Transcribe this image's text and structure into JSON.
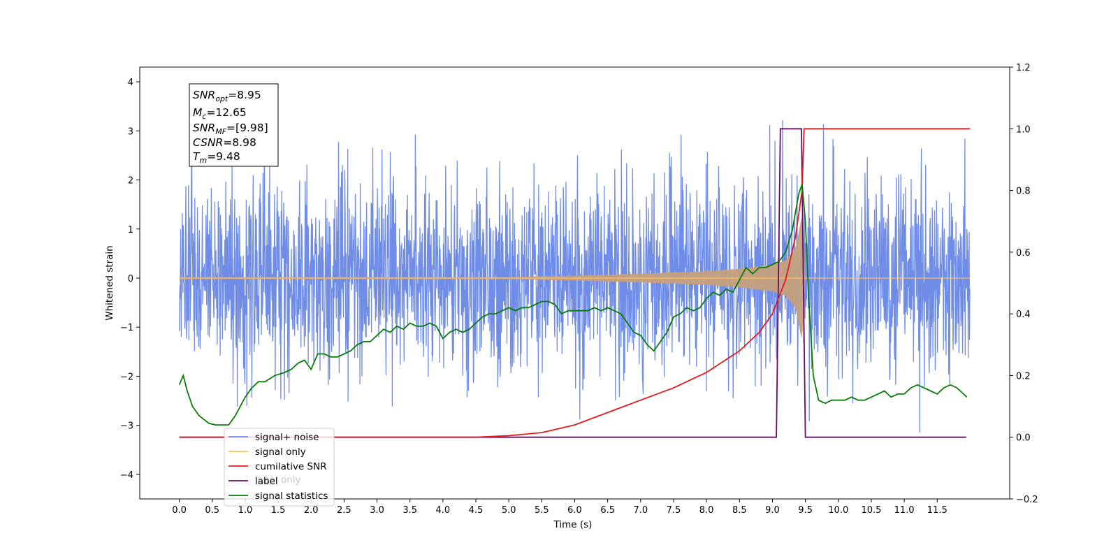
{
  "chart_data": {
    "type": "line",
    "xlabel": "Time (s)",
    "ylabel": "Whitened strain",
    "xlim": [
      -0.6,
      12.6
    ],
    "ylim_left": [
      -4.5,
      4.3
    ],
    "ylim_right": [
      -0.2,
      1.2
    ],
    "grid": false,
    "x_ticks": [
      "0.0",
      "0.5",
      "1.0",
      "1.5",
      "2.0",
      "2.5",
      "3.0",
      "3.5",
      "4.0",
      "4.5",
      "5.0",
      "5.5",
      "6.0",
      "6.5",
      "7.0",
      "7.5",
      "8.0",
      "8.5",
      "9.0",
      "9.5",
      "10.0",
      "10.5",
      "11.0",
      "11.5"
    ],
    "y_ticks_left": [
      "4",
      "3",
      "2",
      "1",
      "0",
      "−1",
      "−2",
      "−3",
      "−4"
    ],
    "y_ticks_right": [
      "1.2",
      "1.0",
      "0.8",
      "0.6",
      "0.4",
      "0.2",
      "0.0",
      "−0.2"
    ],
    "legend_position": "lower-left",
    "legend": [
      {
        "label": "signal+ noise",
        "color": "#6f8ce6"
      },
      {
        "label": "signal only",
        "color": "#ffbf5a"
      },
      {
        "label": "cumilative SNR",
        "color": "#e31a1c"
      },
      {
        "label": "label",
        "color": "#6a0a6a"
      },
      {
        "label": "signal statistics",
        "color": "#0a7a0a"
      }
    ],
    "overlap_text": "label only",
    "annotation": {
      "snr_opt_label": "SNR",
      "snr_opt_sub": "opt",
      "snr_opt_value": "=8.95",
      "mc_label": "M",
      "mc_sub": "c",
      "mc_value": "=12.65",
      "snr_mf_label": "SNR",
      "snr_mf_sub": "MF",
      "snr_mf_value": "=[9.98]",
      "csnr_label": "CSNR",
      "csnr_value": "=8.98",
      "tm_label": "T",
      "tm_sub": "m",
      "tm_value": "=9.48"
    },
    "series": [
      {
        "name": "signal+ noise",
        "axis": "left",
        "x_range": [
          0.0,
          12.0
        ],
        "color": "#6f8ce6"
      },
      {
        "name": "signal only",
        "axis": "left",
        "x_range": [
          0.0,
          12.0
        ],
        "envelope_x": [
          0.0,
          5.0,
          6.0,
          7.0,
          8.0,
          8.5,
          9.0,
          9.2,
          9.35,
          9.45,
          9.5,
          12.0
        ],
        "envelope_amp": [
          0.02,
          0.02,
          0.05,
          0.09,
          0.14,
          0.19,
          0.27,
          0.36,
          0.6,
          1.3,
          0.0,
          0.0
        ],
        "color": "#ffbf5a"
      },
      {
        "name": "cumilative SNR",
        "axis": "right",
        "x": [
          0.0,
          4.5,
          5.0,
          5.5,
          6.0,
          6.5,
          7.0,
          7.5,
          8.0,
          8.5,
          8.8,
          9.0,
          9.2,
          9.35,
          9.45,
          9.48,
          12.0
        ],
        "y": [
          0.0,
          0.0,
          0.005,
          0.015,
          0.04,
          0.08,
          0.12,
          0.16,
          0.21,
          0.28,
          0.34,
          0.4,
          0.51,
          0.65,
          0.8,
          1.0,
          1.0
        ],
        "color": "#e31a1c"
      },
      {
        "name": "label",
        "axis": "right",
        "x": [
          0.0,
          9.06,
          9.12,
          9.44,
          9.5,
          11.94
        ],
        "y": [
          0.0,
          0.0,
          1.0,
          1.0,
          0.0,
          0.0
        ],
        "color": "#6a0a6a"
      },
      {
        "name": "signal statistics",
        "axis": "right",
        "x": [
          0.0,
          0.06,
          0.12,
          0.2,
          0.3,
          0.45,
          0.55,
          0.75,
          0.85,
          1.0,
          1.1,
          1.2,
          1.3,
          1.45,
          1.6,
          1.7,
          1.8,
          1.9,
          2.0,
          2.1,
          2.2,
          2.3,
          2.4,
          2.5,
          2.6,
          2.7,
          2.8,
          2.9,
          3.0,
          3.1,
          3.2,
          3.3,
          3.4,
          3.5,
          3.6,
          3.7,
          3.8,
          3.9,
          4.0,
          4.1,
          4.2,
          4.3,
          4.4,
          4.5,
          4.6,
          4.7,
          4.8,
          4.9,
          5.0,
          5.1,
          5.2,
          5.3,
          5.4,
          5.5,
          5.6,
          5.7,
          5.8,
          5.9,
          6.0,
          6.1,
          6.2,
          6.3,
          6.4,
          6.5,
          6.6,
          6.7,
          6.8,
          6.9,
          7.0,
          7.1,
          7.2,
          7.3,
          7.4,
          7.5,
          7.6,
          7.7,
          7.8,
          7.9,
          8.0,
          8.1,
          8.2,
          8.3,
          8.4,
          8.5,
          8.6,
          8.7,
          8.8,
          8.9,
          9.0,
          9.1,
          9.2,
          9.3,
          9.4,
          9.45,
          9.5,
          9.55,
          9.62,
          9.7,
          9.8,
          9.9,
          10.0,
          10.1,
          10.2,
          10.3,
          10.4,
          10.5,
          10.6,
          10.7,
          10.8,
          10.9,
          11.0,
          11.1,
          11.2,
          11.3,
          11.4,
          11.5,
          11.6,
          11.7,
          11.8,
          11.9,
          11.95
        ],
        "y": [
          0.17,
          0.2,
          0.15,
          0.1,
          0.07,
          0.045,
          0.04,
          0.04,
          0.07,
          0.13,
          0.16,
          0.18,
          0.18,
          0.2,
          0.21,
          0.22,
          0.24,
          0.25,
          0.22,
          0.27,
          0.27,
          0.26,
          0.26,
          0.27,
          0.28,
          0.3,
          0.31,
          0.31,
          0.33,
          0.35,
          0.34,
          0.36,
          0.35,
          0.37,
          0.36,
          0.36,
          0.37,
          0.36,
          0.32,
          0.34,
          0.35,
          0.34,
          0.35,
          0.37,
          0.39,
          0.4,
          0.4,
          0.41,
          0.42,
          0.41,
          0.42,
          0.42,
          0.43,
          0.44,
          0.44,
          0.43,
          0.4,
          0.41,
          0.41,
          0.41,
          0.41,
          0.42,
          0.41,
          0.42,
          0.41,
          0.4,
          0.37,
          0.34,
          0.33,
          0.3,
          0.28,
          0.31,
          0.34,
          0.39,
          0.4,
          0.42,
          0.41,
          0.42,
          0.45,
          0.47,
          0.46,
          0.48,
          0.47,
          0.51,
          0.55,
          0.53,
          0.55,
          0.55,
          0.56,
          0.57,
          0.6,
          0.67,
          0.79,
          0.82,
          0.7,
          0.45,
          0.2,
          0.12,
          0.11,
          0.12,
          0.12,
          0.12,
          0.13,
          0.12,
          0.12,
          0.13,
          0.14,
          0.15,
          0.13,
          0.14,
          0.14,
          0.16,
          0.17,
          0.16,
          0.15,
          0.14,
          0.16,
          0.17,
          0.16,
          0.14,
          0.13
        ],
        "color": "#0a7a0a"
      }
    ]
  }
}
